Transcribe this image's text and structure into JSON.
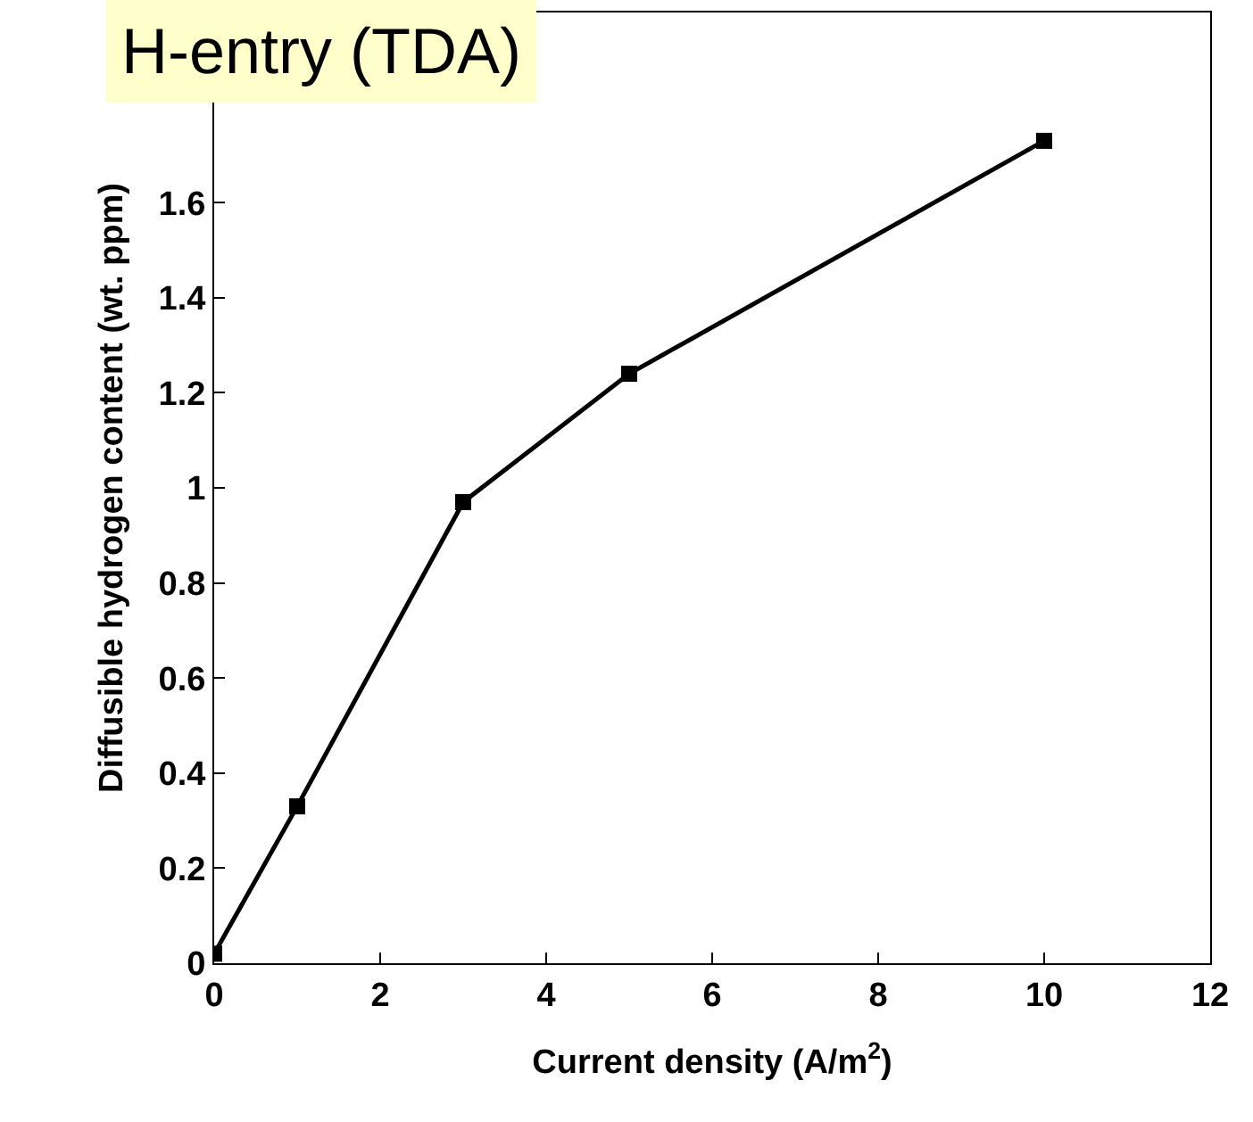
{
  "chart_data": {
    "type": "line",
    "title": "H-entry (TDA)",
    "xlabel": "Current density (A/m$^{2}$)",
    "ylabel": "Diffusible hydrogen content (wt. ppm)",
    "x": [
      0,
      1,
      3,
      5,
      10
    ],
    "series": [
      {
        "color": "#000000",
        "values": [
          0.02,
          0.33,
          0.97,
          1.24,
          1.73
        ]
      }
    ],
    "xlim": [
      0,
      12
    ],
    "xticks": [
      0,
      2,
      4,
      6,
      8,
      10,
      12
    ],
    "ylim": [
      0,
      2.0
    ],
    "yticks": [
      0,
      0.2,
      0.4,
      {
        "value": 0.6,
        "label": "0.6"
      },
      0.8,
      1,
      1.2,
      1.4,
      1.6
    ],
    "marker": "square",
    "line_style": "solid"
  }
}
